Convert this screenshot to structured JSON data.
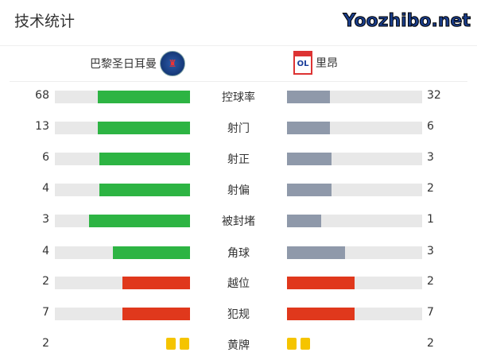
{
  "title": "技术统计",
  "home": {
    "name": "巴黎圣日耳曼",
    "logo": "psg-crest"
  },
  "away": {
    "name": "里昂",
    "logo": "olympique-lyonnais-crest"
  },
  "colors": {
    "home_bar": "#2db443",
    "away_bar": "#8f99aa",
    "foul_bar": "#e0381c",
    "card": "#f5c400",
    "track": "#e8e8e8"
  },
  "stats": [
    {
      "label": "控球率",
      "home": "68",
      "away": "32",
      "home_pct": 68,
      "away_pct": 32,
      "type": "possession"
    },
    {
      "label": "射门",
      "home": "13",
      "away": "6",
      "home_pct": 68,
      "away_pct": 32
    },
    {
      "label": "射正",
      "home": "6",
      "away": "3",
      "home_pct": 67,
      "away_pct": 33
    },
    {
      "label": "射偏",
      "home": "4",
      "away": "2",
      "home_pct": 67,
      "away_pct": 33
    },
    {
      "label": "被封堵",
      "home": "3",
      "away": "1",
      "home_pct": 75,
      "away_pct": 25
    },
    {
      "label": "角球",
      "home": "4",
      "away": "3",
      "home_pct": 57,
      "away_pct": 43
    },
    {
      "label": "越位",
      "home": "2",
      "away": "2",
      "home_pct": 50,
      "away_pct": 50,
      "negative": true
    },
    {
      "label": "犯规",
      "home": "7",
      "away": "7",
      "home_pct": 50,
      "away_pct": 50,
      "negative": true
    },
    {
      "label": "黄牌",
      "home": "2",
      "away": "2",
      "cards": true
    }
  ],
  "watermark": "Yoozhibo.net"
}
